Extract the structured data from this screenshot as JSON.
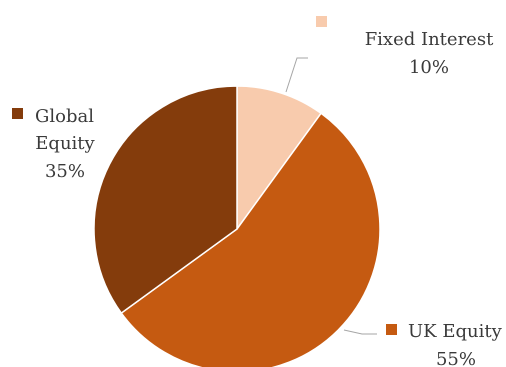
{
  "chart_data": {
    "type": "pie",
    "title": "",
    "slices": [
      {
        "label": "Fixed Interest",
        "value": 10,
        "value_label": "10%",
        "color": "#f8cbad"
      },
      {
        "label": "UK Equity",
        "value": 55,
        "value_label": "55%",
        "color": "#c55a11"
      },
      {
        "label": "Global Equity",
        "value": 35,
        "value_label": "35%",
        "color": "#843c0c"
      }
    ],
    "legend": "labels-with-color-markers",
    "start_angle": "12 o'clock, clockwise"
  }
}
